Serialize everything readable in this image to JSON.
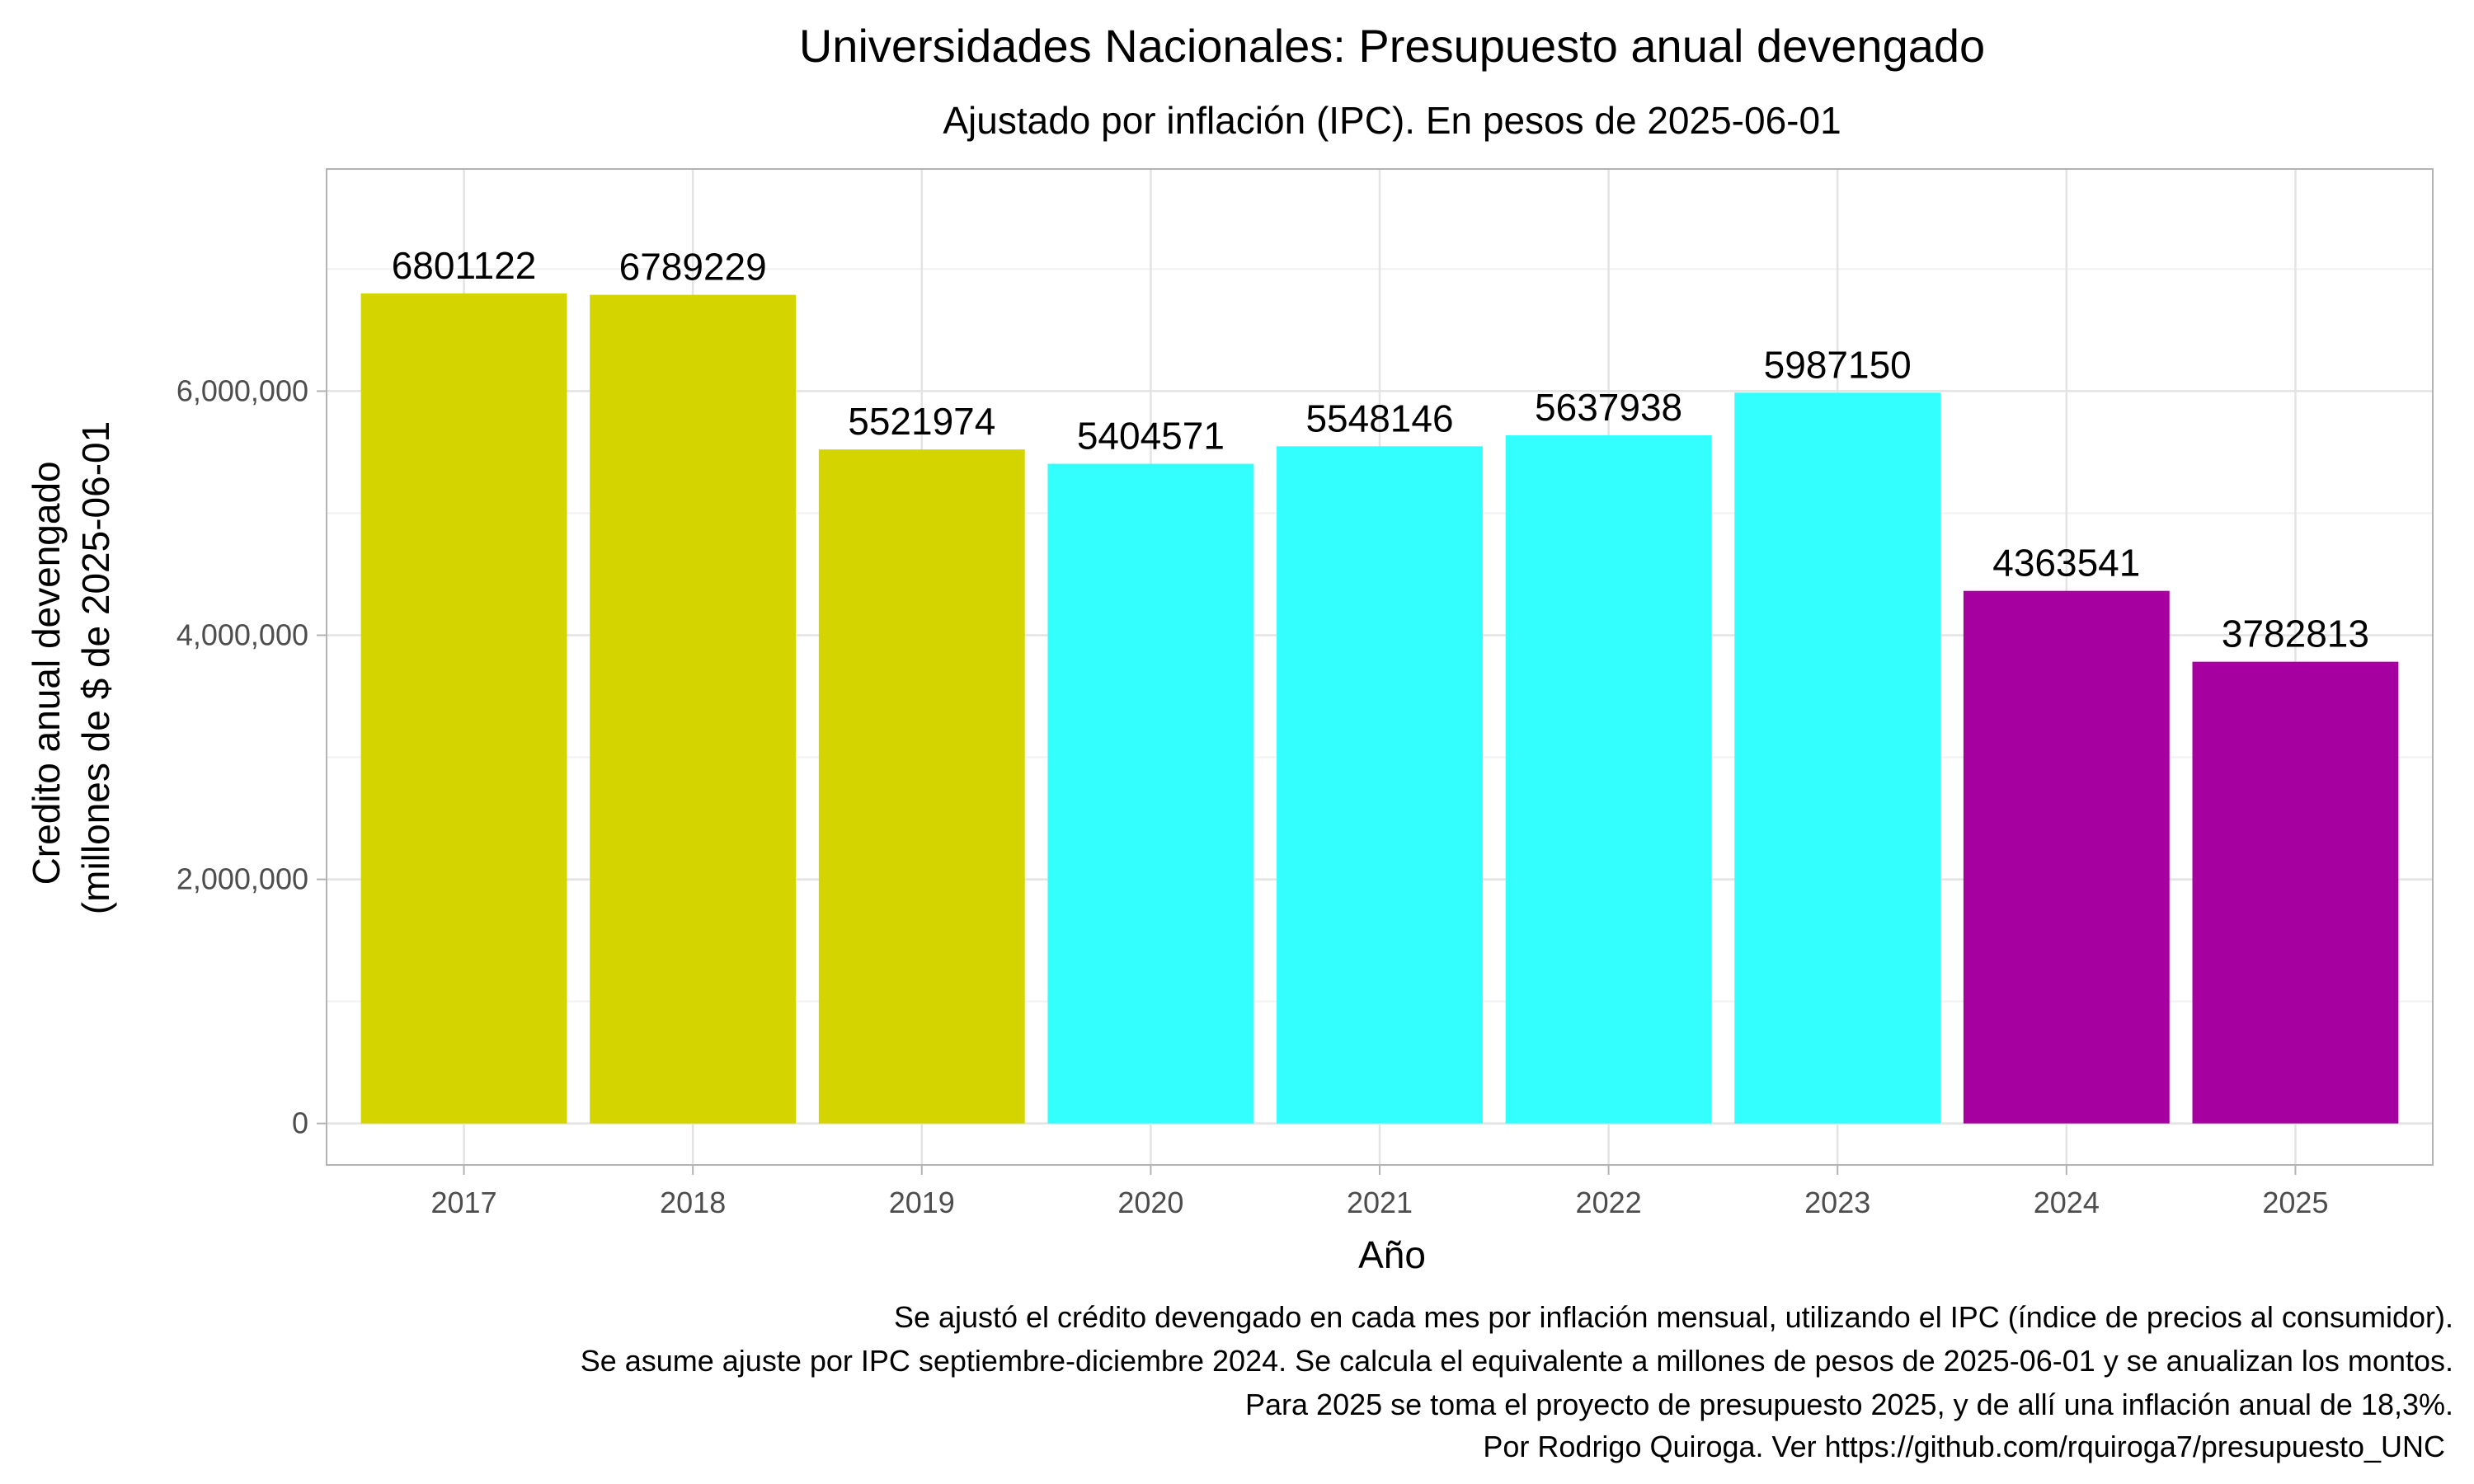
{
  "chart_data": {
    "type": "bar",
    "title": "Universidades Nacionales: Presupuesto anual devengado",
    "subtitle": "Ajustado por inflación (IPC). En pesos de 2025-06-01",
    "xlabel": "Año",
    "ylabel_lines": [
      "Credito anual devengado",
      "(millones de $ de 2025-06-01"
    ],
    "categories": [
      "2017",
      "2018",
      "2019",
      "2020",
      "2021",
      "2022",
      "2023",
      "2024",
      "2025"
    ],
    "values": [
      6801122,
      6789229,
      5521974,
      5404571,
      5548146,
      5637938,
      5987150,
      4363541,
      3782813
    ],
    "data_labels": [
      "6801122",
      "6789229",
      "5521974",
      "5404571",
      "5548146",
      "5637938",
      "5987150",
      "4363541",
      "3782813"
    ],
    "bar_colors": [
      "#d4d400",
      "#d4d400",
      "#d4d400",
      "#33ffff",
      "#33ffff",
      "#33ffff",
      "#33ffff",
      "#a600a0",
      "#a600a0"
    ],
    "y_ticks": [
      0,
      2000000,
      4000000,
      6000000
    ],
    "y_tick_labels": [
      "0",
      "2,000,000",
      "4,000,000",
      "6,000,000"
    ],
    "ylim": [
      -340000,
      7820000
    ],
    "grid": true,
    "legend": "none"
  },
  "caption_lines": [
    "Se ajustó el crédito devengado en cada mes por inflación mensual, utilizando el IPC (índice de precios al consumidor).",
    "Se asume ajuste por IPC septiembre-diciembre 2024. Se calcula el equivalente a millones de pesos de 2025-06-01 y se anualizan los montos.",
    "Para 2025 se toma el proyecto de presupuesto 2025, y de allí una inflación anual de 18,3%.",
    "Por Rodrigo Quiroga. Ver https://github.com/rquiroga7/presupuesto_UNC"
  ]
}
